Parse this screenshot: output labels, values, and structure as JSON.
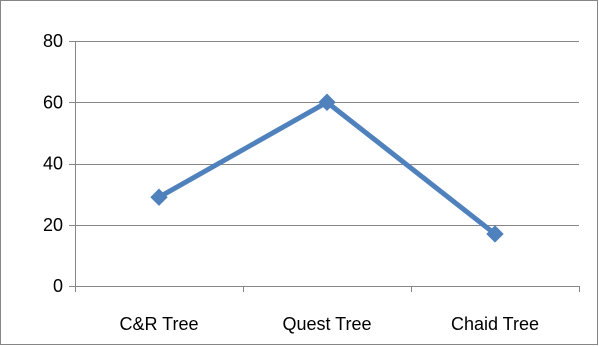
{
  "chart_data": {
    "type": "line",
    "categories": [
      "C&R Tree",
      "Quest Tree",
      "Chaid Tree"
    ],
    "series": [
      {
        "values": [
          29,
          60,
          17
        ],
        "color": "#4F81BD",
        "marker": "diamond"
      }
    ],
    "title": "",
    "xlabel": "",
    "ylabel": "",
    "ylim": [
      0,
      80
    ],
    "yticks": [
      0,
      20,
      40,
      60,
      80
    ],
    "grid": true,
    "legend": "none"
  }
}
